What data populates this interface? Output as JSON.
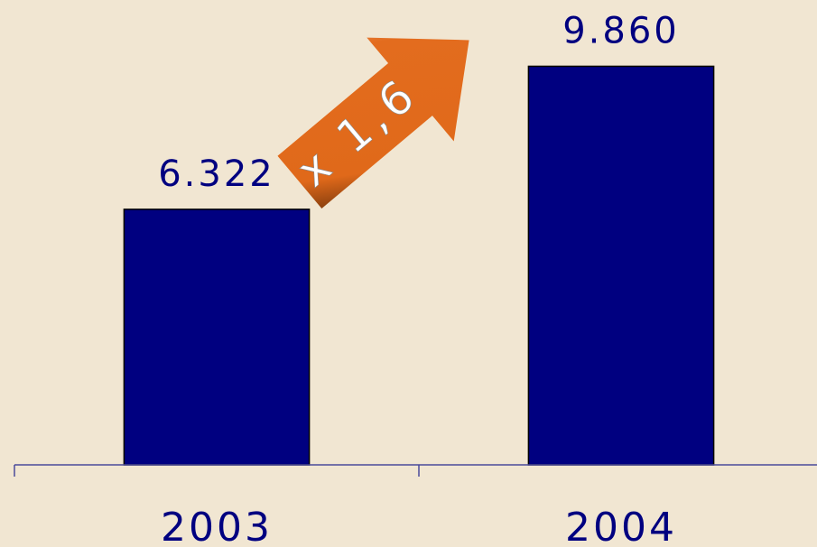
{
  "chart_data": {
    "type": "bar",
    "categories": [
      "2003",
      "2004"
    ],
    "values": [
      6322,
      9860
    ],
    "value_labels": [
      "6.322",
      "9.860"
    ],
    "color": "#000080",
    "ylim": [
      0,
      11500
    ],
    "annotation": "x 1,6"
  }
}
